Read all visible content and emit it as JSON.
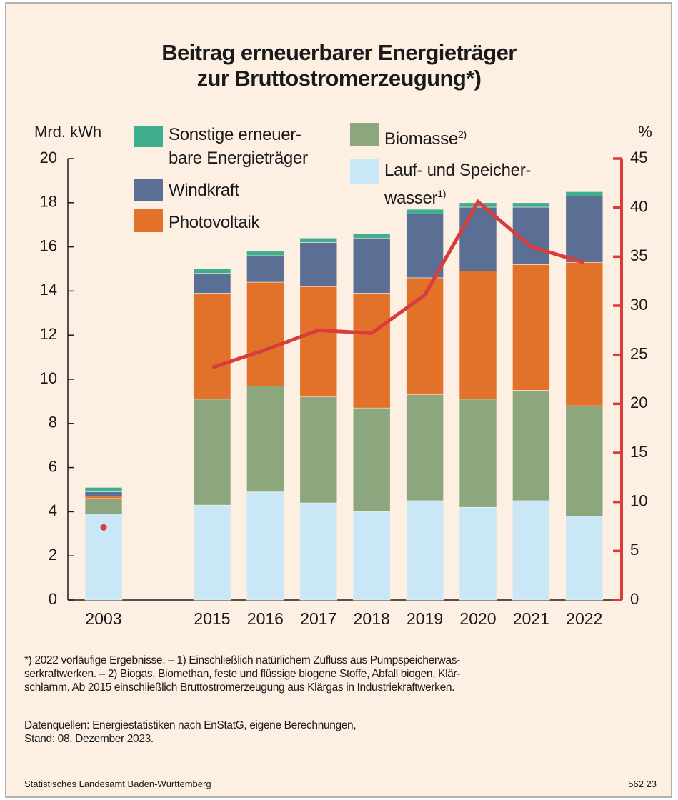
{
  "chart_data": {
    "type": "bar",
    "stacked": true,
    "title": "Beitrag erneuerbarer Energieträger\nzur Bruttostromerzeugung*)",
    "y_label": "Mrd. kWh",
    "y2_label": "%",
    "categories": [
      "2003",
      "2015",
      "2016",
      "2017",
      "2018",
      "2019",
      "2020",
      "2021",
      "2022"
    ],
    "series": [
      {
        "name": "Lauf- und Speicher-\nwasser",
        "note": "1)",
        "color": "#c9e7f7",
        "values": [
          3.9,
          4.3,
          4.9,
          4.4,
          4.0,
          4.5,
          4.2,
          4.5,
          3.8
        ]
      },
      {
        "name": "Biomasse",
        "note": "2)",
        "color": "#8ca67e",
        "values": [
          0.7,
          4.8,
          4.8,
          4.8,
          4.7,
          4.8,
          4.9,
          5.0,
          5.0
        ]
      },
      {
        "name": "Photovoltaik",
        "color": "#e2722a",
        "values": [
          0.1,
          4.8,
          4.7,
          5.0,
          5.2,
          5.3,
          5.8,
          5.7,
          6.5
        ]
      },
      {
        "name": "Windkraft",
        "color": "#5a6f93",
        "values": [
          0.2,
          0.9,
          1.2,
          2.0,
          2.5,
          2.9,
          2.9,
          2.6,
          3.0
        ]
      },
      {
        "name": "Sonstige erneuer-\nbare Energieträger",
        "color": "#3fae8f",
        "values": [
          0.2,
          0.2,
          0.2,
          0.2,
          0.2,
          0.2,
          0.2,
          0.2,
          0.2
        ]
      }
    ],
    "line_series": {
      "axis": "y2",
      "color": "#d83c3c",
      "values": [
        7.4,
        23.7,
        25.5,
        27.5,
        27.2,
        31.1,
        40.6,
        36.0,
        34.4
      ]
    },
    "ylim": [
      0,
      20
    ],
    "yticks": [
      0,
      2,
      4,
      6,
      8,
      10,
      12,
      14,
      16,
      18,
      20
    ],
    "y2lim": [
      0,
      45
    ],
    "y2ticks": [
      0,
      5,
      10,
      15,
      20,
      25,
      30,
      35,
      40,
      45
    ],
    "footnote": "*) 2022 vorläufige Ergebnisse. – 1) Einschließlich natürlichem Zufluss aus Pumpspeicherwas-\nserkraftwerken. – 2) Biogas, Biomethan, feste und flüssige biogene Stoffe, Abfall biogen, Klär-\nschlamm. Ab 2015 einschließlich Bruttostromerzeugung aus Klärgas in Industriekraftwerken.",
    "source": "Datenquellen: Energiestatistiken nach EnStatG, eigene Berechnungen,\nStand: 08. Dezember 2023.",
    "credit": "Statistisches Landesamt Baden-Württemberg",
    "code": "562 23"
  }
}
